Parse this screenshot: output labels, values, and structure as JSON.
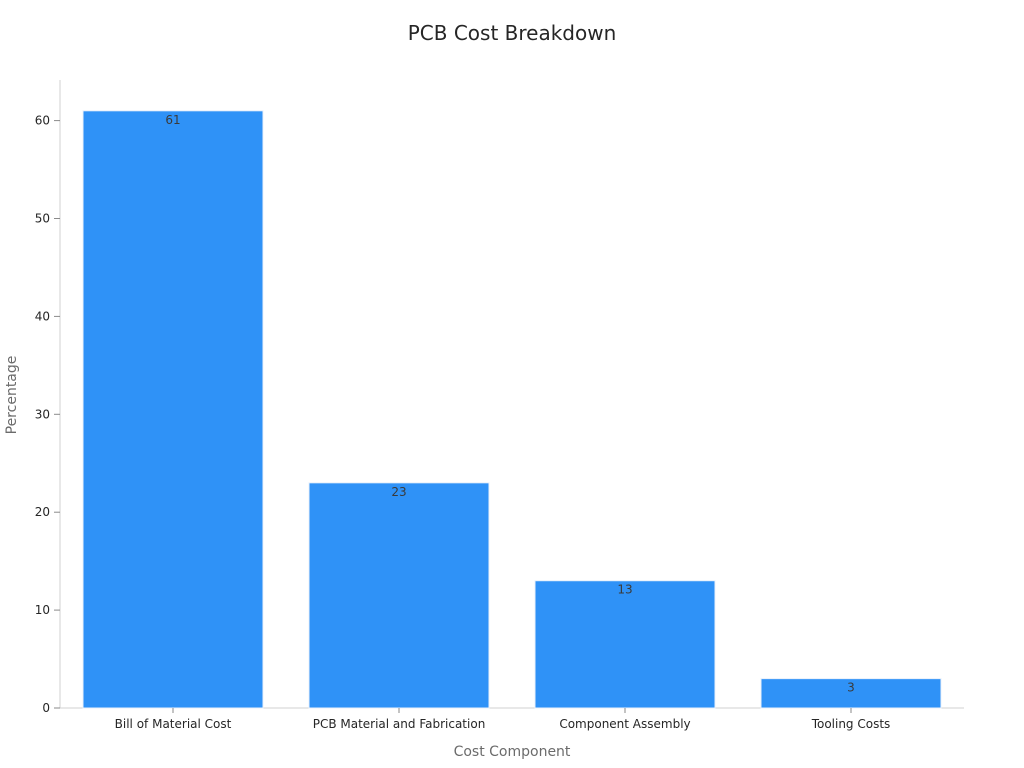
{
  "chart_data": {
    "type": "bar",
    "title": "PCB Cost Breakdown",
    "xlabel": "Cost Component",
    "ylabel": "Percentage",
    "categories": [
      "Bill of Material Cost",
      "PCB Material and Fabrication",
      "Component Assembly",
      "Tooling Costs"
    ],
    "values": [
      61,
      23,
      13,
      3
    ],
    "data_labels": [
      "61",
      "23",
      "13",
      "3"
    ],
    "ylim": [
      0,
      64
    ],
    "yticks": [
      0,
      10,
      20,
      30,
      40,
      50,
      60
    ],
    "ytick_labels": [
      "0",
      "10",
      "20",
      "30",
      "40",
      "50",
      "60"
    ],
    "grid": false,
    "legend": "none",
    "bar_color": "#2f92f7"
  }
}
